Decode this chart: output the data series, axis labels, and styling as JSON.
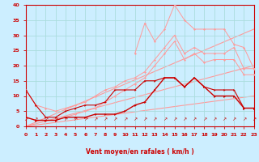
{
  "x": [
    0,
    1,
    2,
    3,
    4,
    5,
    6,
    7,
    8,
    9,
    10,
    11,
    12,
    13,
    14,
    15,
    16,
    17,
    18,
    19,
    20,
    21,
    22,
    23
  ],
  "line_dark1": [
    3,
    2,
    2,
    2,
    3,
    3,
    3,
    4,
    4,
    4,
    5,
    7,
    8,
    12,
    16,
    16,
    13,
    16,
    13,
    10,
    10,
    10,
    6,
    6
  ],
  "line_dark2": [
    12,
    7,
    3,
    3,
    5,
    6,
    7,
    7,
    8,
    12,
    12,
    12,
    15,
    15,
    16,
    16,
    13,
    16,
    13,
    12,
    12,
    12,
    6,
    6
  ],
  "line_pink_lo": [
    3,
    2,
    2,
    2,
    3,
    4,
    5,
    6,
    8,
    10,
    12,
    14,
    16,
    20,
    24,
    28,
    22,
    24,
    21,
    22,
    22,
    22,
    17,
    17
  ],
  "line_pink_mid": [
    12,
    7,
    6,
    5,
    6,
    7,
    8,
    10,
    12,
    13,
    15,
    16,
    18,
    22,
    26,
    30,
    24,
    26,
    24,
    24,
    24,
    26,
    19,
    19
  ],
  "line_pink_hi_x": [
    11,
    12,
    13,
    14,
    15,
    16,
    17,
    18,
    19,
    20,
    21,
    22,
    23
  ],
  "line_pink_hi_y": [
    24,
    34,
    28,
    32,
    40,
    35,
    32,
    32,
    32,
    32,
    27,
    26,
    19
  ],
  "trend1_x": [
    0,
    23
  ],
  "trend1_y": [
    0,
    10
  ],
  "trend2_x": [
    0,
    23
  ],
  "trend2_y": [
    0,
    20
  ],
  "trend3_x": [
    0,
    23
  ],
  "trend3_y": [
    0,
    32
  ],
  "bg_color": "#cceeff",
  "grid_color": "#aadddd",
  "dark_red": "#cc0000",
  "light_pink": "#ff9999",
  "xlabel": "Vent moyen/en rafales ( km/h )",
  "ylim": [
    0,
    40
  ],
  "xlim": [
    0,
    23
  ],
  "yticks": [
    0,
    5,
    10,
    15,
    20,
    25,
    30,
    35,
    40
  ],
  "xticks": [
    0,
    1,
    2,
    3,
    4,
    5,
    6,
    7,
    8,
    9,
    10,
    11,
    12,
    13,
    14,
    15,
    16,
    17,
    18,
    19,
    20,
    21,
    22,
    23
  ]
}
